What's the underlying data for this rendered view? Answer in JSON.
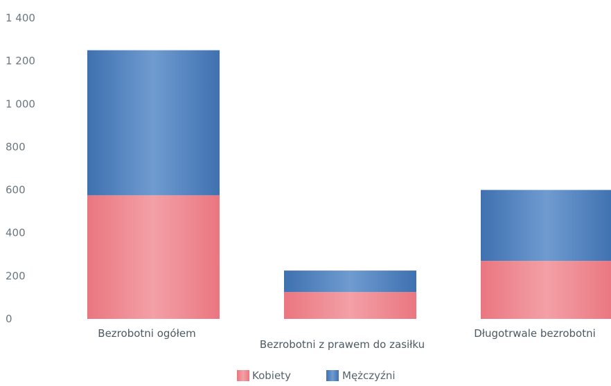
{
  "chart_data": {
    "type": "bar",
    "stacked": true,
    "categories": [
      "Bezrobotni ogółem",
      "Bezrobotni z prawem do zasiłku",
      "Długotrwale bezrobotni"
    ],
    "series": [
      {
        "name": "Kobiety",
        "values": [
          575,
          125,
          270
        ],
        "color": "#ec7c83"
      },
      {
        "name": "Mężczyźni",
        "values": [
          675,
          100,
          330
        ],
        "color": "#4b7db8"
      }
    ],
    "ylim": [
      0,
      1400
    ],
    "yticks": [
      "0",
      "200",
      "400",
      "600",
      "800",
      "1 000",
      "1 200",
      "1 400"
    ],
    "grid": false,
    "legend_position": "bottom-center"
  }
}
